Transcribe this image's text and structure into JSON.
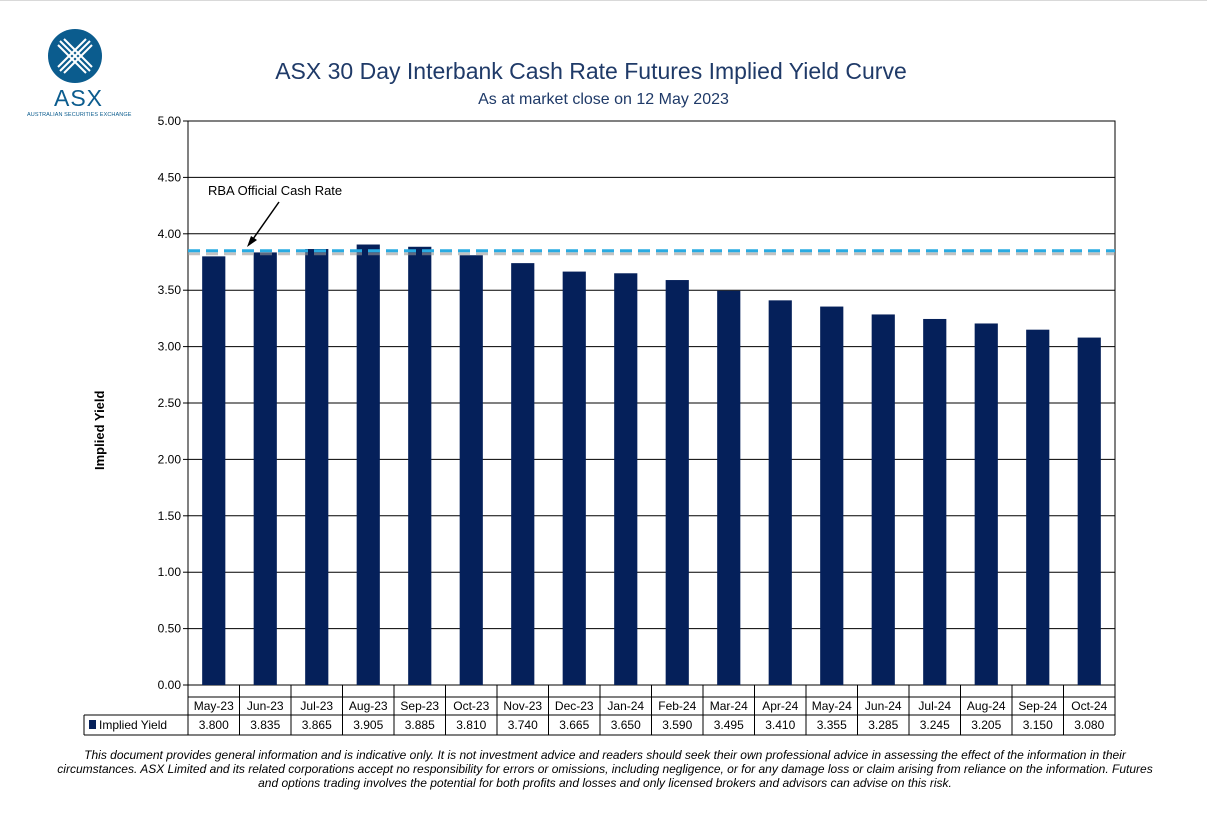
{
  "logo": {
    "text": "ASX",
    "subtext": "AUSTRALIAN SECURITIES EXCHANGE"
  },
  "colors": {
    "bar": "#05205a",
    "rba_line": "#29abe2",
    "title": "#1f3a68",
    "logo": "#0b5c8e"
  },
  "chart_data": {
    "type": "bar",
    "title": "ASX 30 Day Interbank Cash Rate Futures Implied Yield Curve",
    "subtitle": "As at market close on 12 May 2023",
    "ylabel": "Implied Yield",
    "xlabel": "",
    "ylim": [
      0,
      5
    ],
    "yticks": [
      "0.00",
      "0.50",
      "1.00",
      "1.50",
      "2.00",
      "2.50",
      "3.00",
      "3.50",
      "4.00",
      "4.50",
      "5.00"
    ],
    "grid": true,
    "categories": [
      "May-23",
      "Jun-23",
      "Jul-23",
      "Aug-23",
      "Sep-23",
      "Oct-23",
      "Nov-23",
      "Dec-23",
      "Jan-24",
      "Feb-24",
      "Mar-24",
      "Apr-24",
      "May-24",
      "Jun-24",
      "Jul-24",
      "Aug-24",
      "Sep-24",
      "Oct-24"
    ],
    "series": [
      {
        "name": "Implied Yield",
        "values": [
          3.8,
          3.835,
          3.865,
          3.905,
          3.885,
          3.81,
          3.74,
          3.665,
          3.65,
          3.59,
          3.495,
          3.41,
          3.355,
          3.285,
          3.245,
          3.205,
          3.15,
          3.08
        ],
        "labels": [
          "3.800",
          "3.835",
          "3.865",
          "3.905",
          "3.885",
          "3.810",
          "3.740",
          "3.665",
          "3.650",
          "3.590",
          "3.495",
          "3.410",
          "3.355",
          "3.285",
          "3.245",
          "3.205",
          "3.150",
          "3.080"
        ]
      }
    ],
    "reference_line": {
      "label": "RBA Official Cash Rate",
      "value": 3.85,
      "style": "dashed"
    },
    "data_table": true
  },
  "disclaimer": "This document provides general information and is indicative only. It is not investment advice and readers should seek their own professional advice in assessing the effect of the information in their circumstances. ASX Limited and its related corporations accept no responsibility for errors or omissions, including negligence, or for any damage loss or claim arising from reliance on the information. Futures and options trading involves the potential for both profits and losses and only licensed brokers and advisors can advise on this risk."
}
